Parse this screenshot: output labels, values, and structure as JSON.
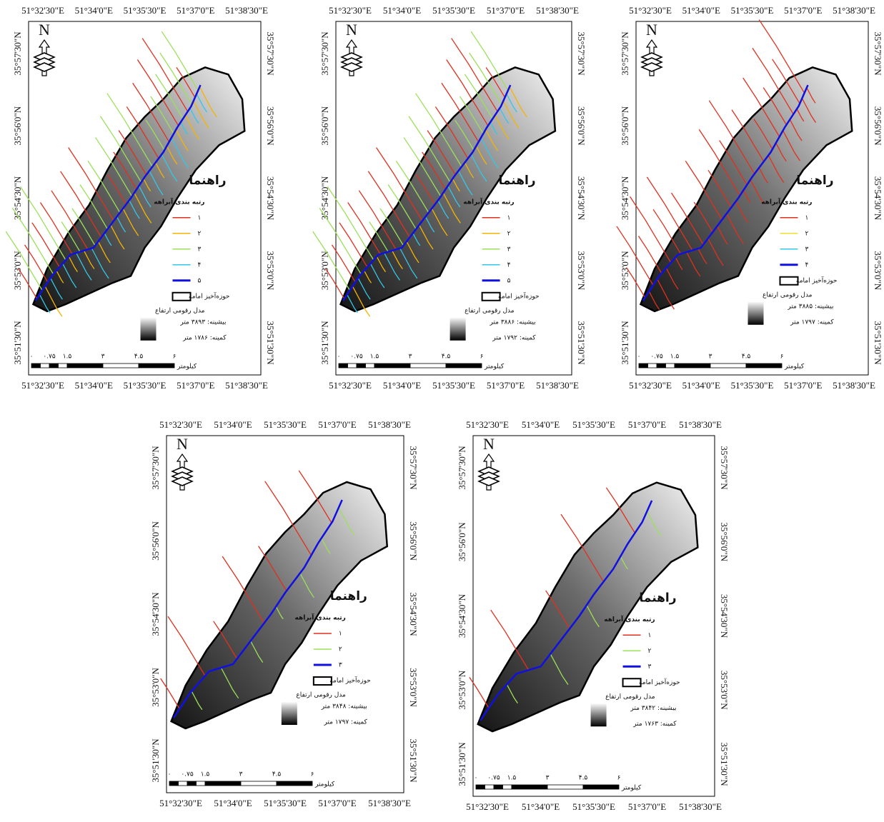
{
  "x_labels": [
    "51°32'30\"E",
    "51°34'0\"E",
    "51°35'30\"E",
    "51°37'0\"E",
    "51°38'30\"E"
  ],
  "y_labels": [
    "35°57'30\"N",
    "35°56'0\"N",
    "35°54'30\"N",
    "35°53'0\"N",
    "35°51'30\"N"
  ],
  "north": "N",
  "legend_title": "راهنما",
  "stream_order_title": "رتبه بندی آبراهه",
  "basin_label": "حوزه‌آخیز امامه",
  "dem_title": "مدل رقومی ارتفاع",
  "scale_unit": "کیلومتر",
  "scale_ticks": [
    "۰",
    "۰.۷۵",
    "۱.۵",
    "۳",
    "۴.۵",
    "۶"
  ],
  "panels": [
    {
      "orders": [
        "۱",
        "۲",
        "۳",
        "۴",
        "۵"
      ],
      "colors": [
        "#e0301e",
        "#f5b400",
        "#9be05a",
        "#33c7e8",
        "#1010e0"
      ],
      "max": "بیشینه: ۳۸۹۳ متر",
      "min": "کمینه: ۱۷۸۶ متر"
    },
    {
      "orders": [
        "۱",
        "۲",
        "۳",
        "۴",
        "۵"
      ],
      "colors": [
        "#e0301e",
        "#f5b400",
        "#9be05a",
        "#33c7e8",
        "#1010e0"
      ],
      "max": "بیشینه: ۳۸۸۶ متر",
      "min": "کمینه: ۱۷۹۲ متر"
    },
    {
      "orders": [
        "۱",
        "۲",
        "۳",
        "۴"
      ],
      "colors": [
        "#e0301e",
        "#f0e030",
        "#33c7e8",
        "#1010e0"
      ],
      "max": "بیشینه: ۳۸۸۵ متر",
      "min": "کمینه: ۱۷۹۷ متر"
    },
    {
      "orders": [
        "۱",
        "۲",
        "۳"
      ],
      "colors": [
        "#e0301e",
        "#9be05a",
        "#1010e0"
      ],
      "max": "بیشینه: ۳۸۴۸ متر",
      "min": "کمینه: ۱۷۹۷ متر"
    },
    {
      "orders": [
        "۱",
        "۲",
        "۳"
      ],
      "colors": [
        "#e0301e",
        "#9be05a",
        "#1010e0"
      ],
      "max": "بیشینه: ۳۸۴۲ متر",
      "min": "کمینه: ۱۷۶۳ متر"
    }
  ]
}
